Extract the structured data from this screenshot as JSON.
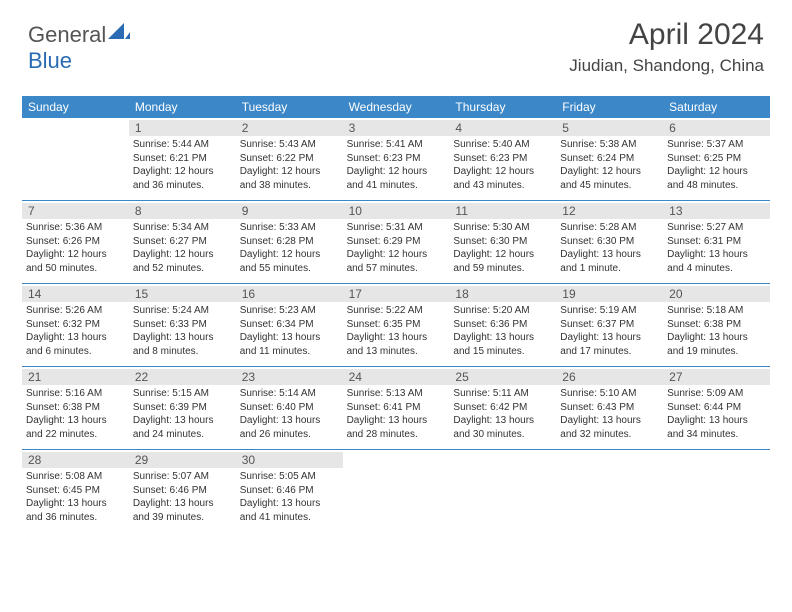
{
  "brand": {
    "text_general": "General",
    "text_blue": "Blue",
    "logo_color": "#2a6bb3"
  },
  "header": {
    "title": "April 2024",
    "location": "Jiudian, Shandong, China"
  },
  "colors": {
    "header_bg": "#3b87c8",
    "grid_line": "#3b87c8",
    "daynum_bg": "#e6e6e6"
  },
  "day_names": [
    "Sunday",
    "Monday",
    "Tuesday",
    "Wednesday",
    "Thursday",
    "Friday",
    "Saturday"
  ],
  "weeks": [
    [
      {
        "num": "",
        "sunrise": "",
        "sunset": "",
        "day1": "",
        "day2": ""
      },
      {
        "num": "1",
        "sunrise": "Sunrise: 5:44 AM",
        "sunset": "Sunset: 6:21 PM",
        "day1": "Daylight: 12 hours",
        "day2": "and 36 minutes."
      },
      {
        "num": "2",
        "sunrise": "Sunrise: 5:43 AM",
        "sunset": "Sunset: 6:22 PM",
        "day1": "Daylight: 12 hours",
        "day2": "and 38 minutes."
      },
      {
        "num": "3",
        "sunrise": "Sunrise: 5:41 AM",
        "sunset": "Sunset: 6:23 PM",
        "day1": "Daylight: 12 hours",
        "day2": "and 41 minutes."
      },
      {
        "num": "4",
        "sunrise": "Sunrise: 5:40 AM",
        "sunset": "Sunset: 6:23 PM",
        "day1": "Daylight: 12 hours",
        "day2": "and 43 minutes."
      },
      {
        "num": "5",
        "sunrise": "Sunrise: 5:38 AM",
        "sunset": "Sunset: 6:24 PM",
        "day1": "Daylight: 12 hours",
        "day2": "and 45 minutes."
      },
      {
        "num": "6",
        "sunrise": "Sunrise: 5:37 AM",
        "sunset": "Sunset: 6:25 PM",
        "day1": "Daylight: 12 hours",
        "day2": "and 48 minutes."
      }
    ],
    [
      {
        "num": "7",
        "sunrise": "Sunrise: 5:36 AM",
        "sunset": "Sunset: 6:26 PM",
        "day1": "Daylight: 12 hours",
        "day2": "and 50 minutes."
      },
      {
        "num": "8",
        "sunrise": "Sunrise: 5:34 AM",
        "sunset": "Sunset: 6:27 PM",
        "day1": "Daylight: 12 hours",
        "day2": "and 52 minutes."
      },
      {
        "num": "9",
        "sunrise": "Sunrise: 5:33 AM",
        "sunset": "Sunset: 6:28 PM",
        "day1": "Daylight: 12 hours",
        "day2": "and 55 minutes."
      },
      {
        "num": "10",
        "sunrise": "Sunrise: 5:31 AM",
        "sunset": "Sunset: 6:29 PM",
        "day1": "Daylight: 12 hours",
        "day2": "and 57 minutes."
      },
      {
        "num": "11",
        "sunrise": "Sunrise: 5:30 AM",
        "sunset": "Sunset: 6:30 PM",
        "day1": "Daylight: 12 hours",
        "day2": "and 59 minutes."
      },
      {
        "num": "12",
        "sunrise": "Sunrise: 5:28 AM",
        "sunset": "Sunset: 6:30 PM",
        "day1": "Daylight: 13 hours",
        "day2": "and 1 minute."
      },
      {
        "num": "13",
        "sunrise": "Sunrise: 5:27 AM",
        "sunset": "Sunset: 6:31 PM",
        "day1": "Daylight: 13 hours",
        "day2": "and 4 minutes."
      }
    ],
    [
      {
        "num": "14",
        "sunrise": "Sunrise: 5:26 AM",
        "sunset": "Sunset: 6:32 PM",
        "day1": "Daylight: 13 hours",
        "day2": "and 6 minutes."
      },
      {
        "num": "15",
        "sunrise": "Sunrise: 5:24 AM",
        "sunset": "Sunset: 6:33 PM",
        "day1": "Daylight: 13 hours",
        "day2": "and 8 minutes."
      },
      {
        "num": "16",
        "sunrise": "Sunrise: 5:23 AM",
        "sunset": "Sunset: 6:34 PM",
        "day1": "Daylight: 13 hours",
        "day2": "and 11 minutes."
      },
      {
        "num": "17",
        "sunrise": "Sunrise: 5:22 AM",
        "sunset": "Sunset: 6:35 PM",
        "day1": "Daylight: 13 hours",
        "day2": "and 13 minutes."
      },
      {
        "num": "18",
        "sunrise": "Sunrise: 5:20 AM",
        "sunset": "Sunset: 6:36 PM",
        "day1": "Daylight: 13 hours",
        "day2": "and 15 minutes."
      },
      {
        "num": "19",
        "sunrise": "Sunrise: 5:19 AM",
        "sunset": "Sunset: 6:37 PM",
        "day1": "Daylight: 13 hours",
        "day2": "and 17 minutes."
      },
      {
        "num": "20",
        "sunrise": "Sunrise: 5:18 AM",
        "sunset": "Sunset: 6:38 PM",
        "day1": "Daylight: 13 hours",
        "day2": "and 19 minutes."
      }
    ],
    [
      {
        "num": "21",
        "sunrise": "Sunrise: 5:16 AM",
        "sunset": "Sunset: 6:38 PM",
        "day1": "Daylight: 13 hours",
        "day2": "and 22 minutes."
      },
      {
        "num": "22",
        "sunrise": "Sunrise: 5:15 AM",
        "sunset": "Sunset: 6:39 PM",
        "day1": "Daylight: 13 hours",
        "day2": "and 24 minutes."
      },
      {
        "num": "23",
        "sunrise": "Sunrise: 5:14 AM",
        "sunset": "Sunset: 6:40 PM",
        "day1": "Daylight: 13 hours",
        "day2": "and 26 minutes."
      },
      {
        "num": "24",
        "sunrise": "Sunrise: 5:13 AM",
        "sunset": "Sunset: 6:41 PM",
        "day1": "Daylight: 13 hours",
        "day2": "and 28 minutes."
      },
      {
        "num": "25",
        "sunrise": "Sunrise: 5:11 AM",
        "sunset": "Sunset: 6:42 PM",
        "day1": "Daylight: 13 hours",
        "day2": "and 30 minutes."
      },
      {
        "num": "26",
        "sunrise": "Sunrise: 5:10 AM",
        "sunset": "Sunset: 6:43 PM",
        "day1": "Daylight: 13 hours",
        "day2": "and 32 minutes."
      },
      {
        "num": "27",
        "sunrise": "Sunrise: 5:09 AM",
        "sunset": "Sunset: 6:44 PM",
        "day1": "Daylight: 13 hours",
        "day2": "and 34 minutes."
      }
    ],
    [
      {
        "num": "28",
        "sunrise": "Sunrise: 5:08 AM",
        "sunset": "Sunset: 6:45 PM",
        "day1": "Daylight: 13 hours",
        "day2": "and 36 minutes."
      },
      {
        "num": "29",
        "sunrise": "Sunrise: 5:07 AM",
        "sunset": "Sunset: 6:46 PM",
        "day1": "Daylight: 13 hours",
        "day2": "and 39 minutes."
      },
      {
        "num": "30",
        "sunrise": "Sunrise: 5:05 AM",
        "sunset": "Sunset: 6:46 PM",
        "day1": "Daylight: 13 hours",
        "day2": "and 41 minutes."
      },
      {
        "num": "",
        "sunrise": "",
        "sunset": "",
        "day1": "",
        "day2": ""
      },
      {
        "num": "",
        "sunrise": "",
        "sunset": "",
        "day1": "",
        "day2": ""
      },
      {
        "num": "",
        "sunrise": "",
        "sunset": "",
        "day1": "",
        "day2": ""
      },
      {
        "num": "",
        "sunrise": "",
        "sunset": "",
        "day1": "",
        "day2": ""
      }
    ]
  ]
}
